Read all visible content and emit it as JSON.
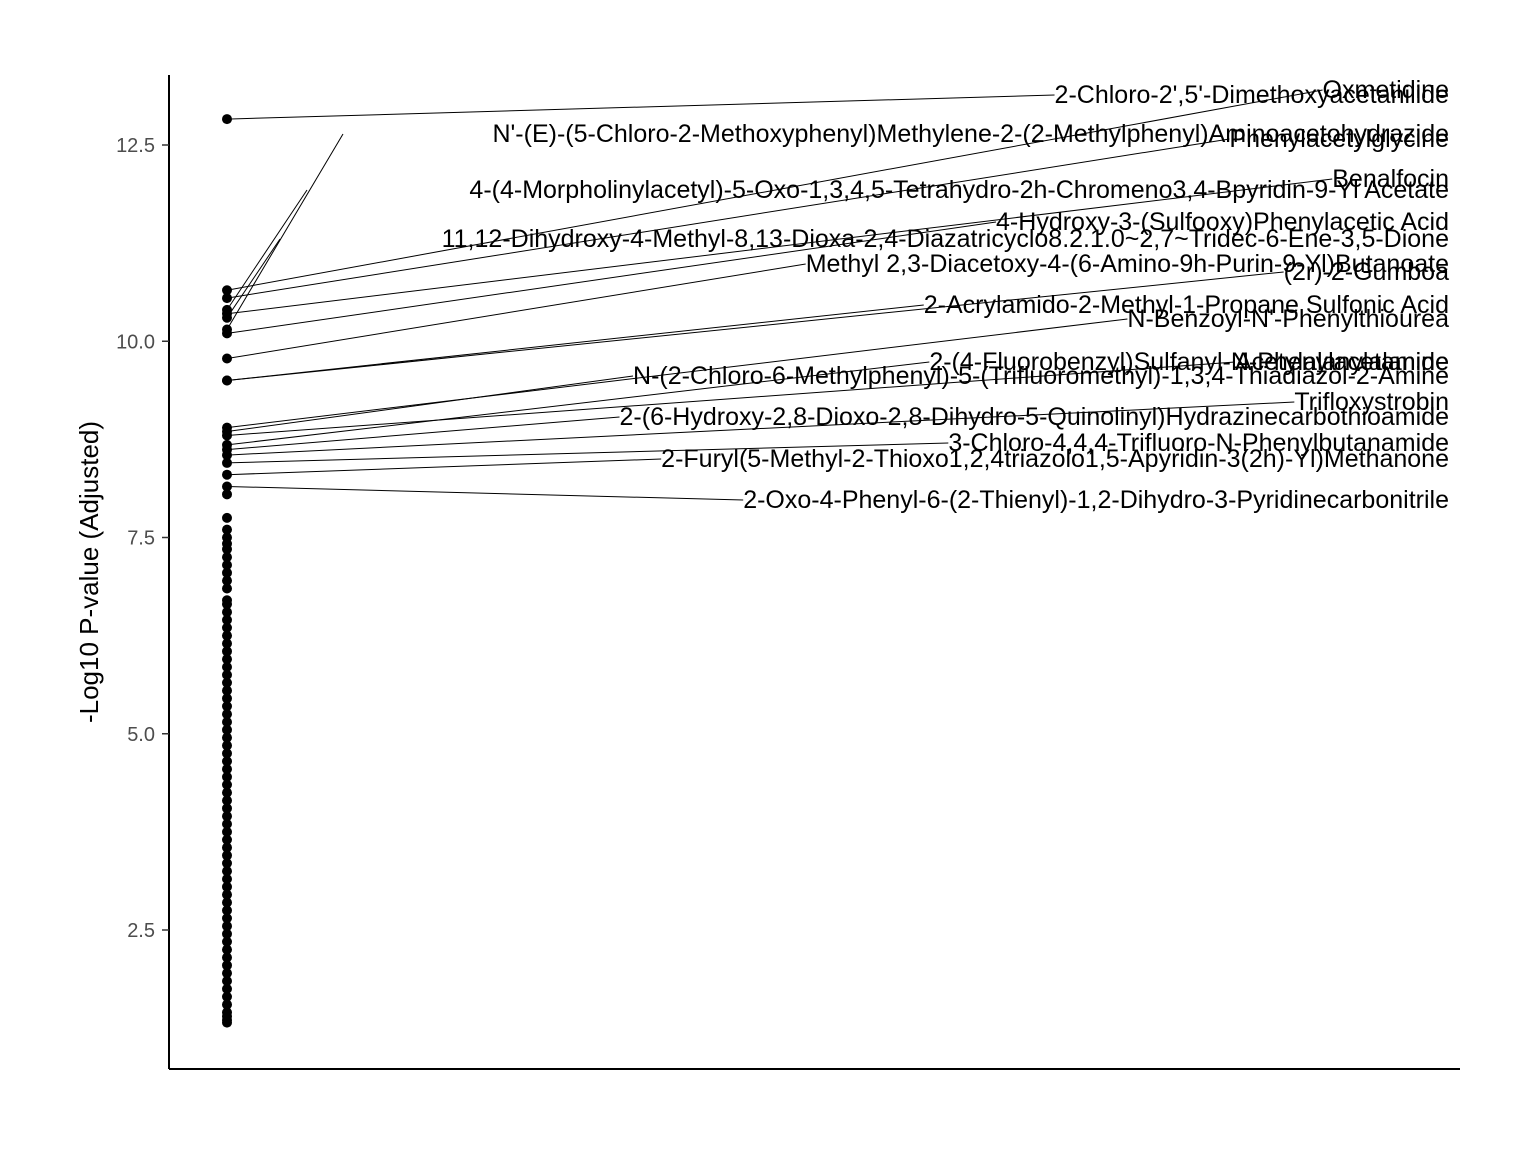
{
  "chart_data": {
    "type": "scatter",
    "title": "",
    "xlabel": "",
    "ylabel": "-Log10 P-value (Adjusted)",
    "ylim": [
      1.1,
      13.75
    ],
    "y_ticks": [
      2.5,
      5.0,
      7.5,
      10.0,
      12.5
    ],
    "y_tick_labels": [
      "2.5",
      "5.0",
      "7.5",
      "10.0",
      "12.5"
    ],
    "grid": false,
    "legend": "none",
    "labeled_points": [
      {
        "label": "2-Chloro-2',5'-Dimethoxyacetanilide",
        "y": 12.83
      },
      {
        "label": "Oxmetidine",
        "y": 10.65
      },
      {
        "label": "N'-(E)-(5-Chloro-2-Methoxyphenyl)Methylene-2-(2-Methylphenyl)Aminoacetohydrazide",
        "y": 10.15
      },
      {
        "label": "Phenylacetylglycine",
        "y": 10.55
      },
      {
        "label": "4-(4-Morpholinylacetyl)-5-Oxo-1,3,4,5-Tetrahydro-2h-Chromeno3,4-Bpyridin-9-Yl Acetate",
        "y": 10.4
      },
      {
        "label": "Benalfocin",
        "y": 10.35
      },
      {
        "label": "4-Hydroxy-3-(Sulfooxy)Phenylacetic Acid",
        "y": 10.1
      },
      {
        "label": "11,12-Dihydroxy-4-Methyl-8,13-Dioxa-2,4-Diazatricyclo8.2.1.0~2,7~Tridec-6-Ene-3,5-Dione",
        "y": 10.3
      },
      {
        "label": "Methyl 2,3-Diacetoxy-4-(6-Amino-9h-Purin-9-Yl)Butanoate",
        "y": 9.78
      },
      {
        "label": "(2r)-2-Gumboa",
        "y": 9.5
      },
      {
        "label": "2-Acrylamido-2-Methyl-1-Propane Sulfonic Acid",
        "y": 9.5
      },
      {
        "label": "N-Benzoyl-N'-Phenylthiourea",
        "y": 8.9
      },
      {
        "label": "2-(4-Fluorobenzyl)Sulfanyl-N-Phenylacetamide",
        "y": 8.68
      },
      {
        "label": "Acetylalanylalanine",
        "y": 8.8
      },
      {
        "label": "N-(2-Chloro-6-Methylphenyl)-5-(Trifluoromethyl)-1,3,4-Thiadiazol-2-Amine",
        "y": 8.85
      },
      {
        "label": "Trifloxystrobin",
        "y": 8.55
      },
      {
        "label": "2-(6-Hydroxy-2,8-Dioxo-2,8-Dihydro-5-Quinolinyl)Hydrazinecarbothioamide",
        "y": 8.62
      },
      {
        "label": "3-Chloro-4,4,4-Trifluoro-N-Phenylbutanamide",
        "y": 8.45
      },
      {
        "label": "2-Furyl(5-Methyl-2-Thioxo1,2,4triazolo1,5-Apyridin-3(2h)-Yl)Methanone",
        "y": 8.3
      },
      {
        "label": "2-Oxo-4-Phenyl-6-(2-Thienyl)-1,2-Dihydro-3-Pyridinecarbonitrile",
        "y": 8.15
      }
    ],
    "unlabeled_points_y": [
      8.05,
      7.75,
      7.6,
      7.5,
      7.42,
      7.35,
      7.25,
      7.15,
      7.05,
      6.95,
      6.85,
      6.7,
      6.65,
      6.55,
      6.45,
      6.35,
      6.25,
      6.15,
      6.05,
      5.95,
      5.85,
      5.75,
      5.65,
      5.55,
      5.45,
      5.35,
      5.25,
      5.15,
      5.05,
      4.95,
      4.85,
      4.75,
      4.65,
      4.55,
      4.45,
      4.35,
      4.25,
      4.15,
      4.05,
      3.95,
      3.85,
      3.75,
      3.65,
      3.55,
      3.45,
      3.35,
      3.25,
      3.15,
      3.05,
      2.95,
      2.85,
      2.75,
      2.65,
      2.55,
      2.45,
      2.35,
      2.25,
      2.15,
      2.05,
      1.95,
      1.85,
      1.75,
      1.65,
      1.55,
      1.45,
      1.4,
      1.35,
      1.32
    ]
  }
}
